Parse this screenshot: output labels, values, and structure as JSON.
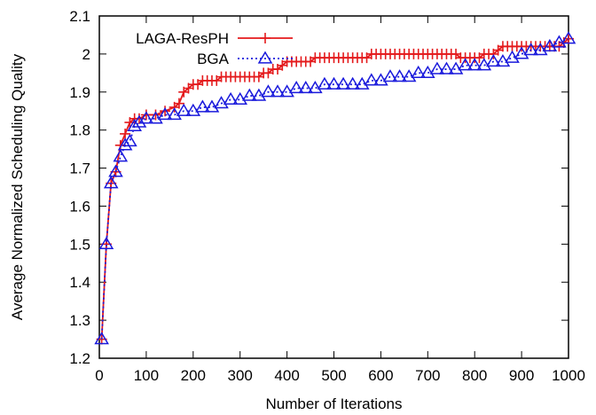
{
  "colors": {
    "laga": "#e41a1c",
    "bga": "#1a1adc",
    "frame": "#000000"
  },
  "chart_data": {
    "type": "line",
    "title": "",
    "xlabel": "Number of Iterations",
    "ylabel": "Average Normalized Scheduling Quality",
    "xlim": [
      0,
      1000
    ],
    "ylim": [
      1.2,
      2.1
    ],
    "xticks": [
      "0",
      "100",
      "200",
      "300",
      "400",
      "500",
      "600",
      "700",
      "800",
      "900",
      "1000"
    ],
    "yticks": [
      "1.2",
      "1.3",
      "1.4",
      "1.5",
      "1.6",
      "1.7",
      "1.8",
      "1.9",
      "2",
      "2.1"
    ],
    "legend_position": "top-left",
    "series": [
      {
        "name": "LAGA-ResPH",
        "marker": "plus",
        "line": "solid",
        "x": [
          5,
          15,
          25,
          35,
          45,
          55,
          65,
          75,
          85,
          100,
          120,
          140,
          160,
          170,
          180,
          190,
          200,
          210,
          220,
          230,
          240,
          250,
          260,
          270,
          280,
          290,
          300,
          310,
          320,
          330,
          340,
          350,
          360,
          370,
          380,
          390,
          400,
          410,
          420,
          430,
          440,
          450,
          460,
          470,
          480,
          490,
          500,
          510,
          520,
          530,
          540,
          550,
          560,
          570,
          580,
          590,
          600,
          610,
          620,
          630,
          640,
          650,
          660,
          670,
          680,
          690,
          700,
          710,
          720,
          730,
          740,
          750,
          760,
          770,
          780,
          790,
          800,
          810,
          820,
          830,
          840,
          850,
          860,
          870,
          880,
          890,
          900,
          910,
          920,
          930,
          940,
          950,
          960,
          970,
          980,
          990,
          1000
        ],
        "y": [
          1.25,
          1.5,
          1.66,
          1.69,
          1.76,
          1.79,
          1.82,
          1.83,
          1.83,
          1.84,
          1.84,
          1.85,
          1.86,
          1.87,
          1.9,
          1.91,
          1.92,
          1.92,
          1.93,
          1.93,
          1.93,
          1.93,
          1.94,
          1.94,
          1.94,
          1.94,
          1.94,
          1.94,
          1.94,
          1.94,
          1.94,
          1.95,
          1.95,
          1.96,
          1.96,
          1.97,
          1.98,
          1.98,
          1.98,
          1.98,
          1.98,
          1.98,
          1.99,
          1.99,
          1.99,
          1.99,
          1.99,
          1.99,
          1.99,
          1.99,
          1.99,
          1.99,
          1.99,
          1.99,
          2.0,
          2.0,
          2.0,
          2.0,
          2.0,
          2.0,
          2.0,
          2.0,
          2.0,
          2.0,
          2.0,
          2.0,
          2.0,
          2.0,
          2.0,
          2.0,
          2.0,
          2.0,
          2.0,
          1.99,
          1.99,
          1.99,
          1.99,
          1.99,
          2.0,
          2.0,
          2.0,
          2.01,
          2.02,
          2.02,
          2.02,
          2.02,
          2.02,
          2.02,
          2.02,
          2.02,
          2.02,
          2.02,
          2.02,
          2.02,
          2.02,
          2.03,
          2.04
        ]
      },
      {
        "name": "BGA",
        "marker": "triangle",
        "line": "dotted",
        "x": [
          5,
          15,
          25,
          35,
          45,
          55,
          65,
          75,
          85,
          100,
          120,
          140,
          160,
          180,
          200,
          220,
          240,
          260,
          280,
          300,
          320,
          340,
          360,
          380,
          400,
          420,
          440,
          460,
          480,
          500,
          520,
          540,
          560,
          580,
          600,
          620,
          640,
          660,
          680,
          700,
          720,
          740,
          760,
          780,
          800,
          820,
          840,
          860,
          880,
          900,
          920,
          940,
          960,
          980,
          1000
        ],
        "y": [
          1.25,
          1.5,
          1.66,
          1.69,
          1.73,
          1.76,
          1.77,
          1.81,
          1.82,
          1.83,
          1.83,
          1.84,
          1.84,
          1.85,
          1.85,
          1.86,
          1.86,
          1.87,
          1.88,
          1.88,
          1.89,
          1.89,
          1.9,
          1.9,
          1.9,
          1.91,
          1.91,
          1.91,
          1.92,
          1.92,
          1.92,
          1.92,
          1.92,
          1.93,
          1.93,
          1.94,
          1.94,
          1.94,
          1.95,
          1.95,
          1.96,
          1.96,
          1.96,
          1.97,
          1.97,
          1.97,
          1.98,
          1.98,
          1.99,
          2.0,
          2.01,
          2.01,
          2.02,
          2.03,
          2.04
        ]
      }
    ]
  }
}
